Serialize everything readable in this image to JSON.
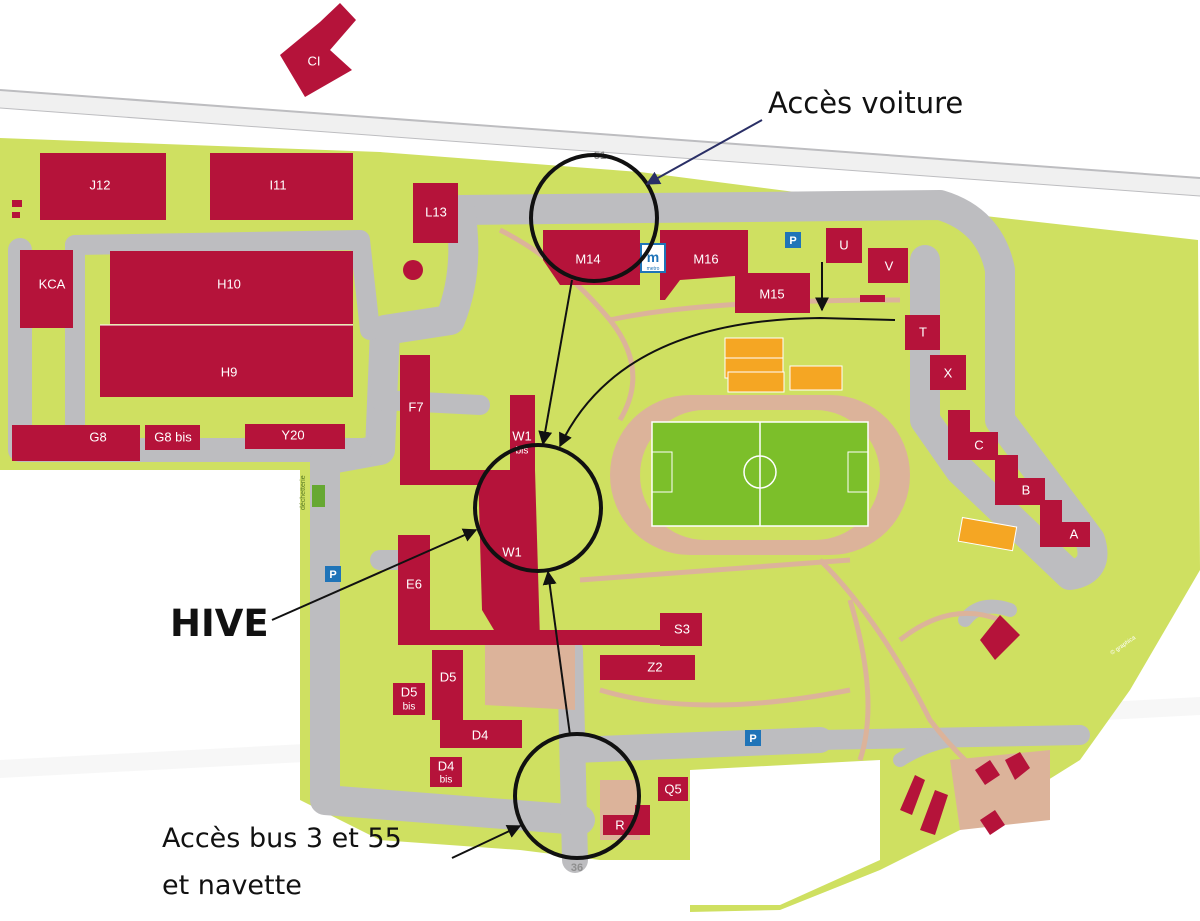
{
  "colors": {
    "building": "#b5133a",
    "lawn": "#cfe061",
    "road": "#bdbdc0",
    "path": "#dcb39a",
    "field": "#7cbf2a",
    "court": "#f5a623",
    "parking": "#1f74b8",
    "annotation": "#111111"
  },
  "roads": {
    "north": "51",
    "south": "36"
  },
  "buildings": {
    "ci": "CI",
    "j12": "J12",
    "i11": "I11",
    "l13": "L13",
    "kca": "KCA",
    "h10": "H10",
    "h9": "H9",
    "g8": "G8",
    "g8bis": "G8 bis",
    "y20": "Y20",
    "f7": "F7",
    "w1bis": "W1",
    "w1bis_sub": "bis",
    "w1": "W1",
    "e6": "E6",
    "m14": "M14",
    "m16": "M16",
    "m15": "M15",
    "u": "U",
    "v": "V",
    "t": "T",
    "x": "X",
    "c": "C",
    "b": "B",
    "a": "A",
    "s3": "S3",
    "z2": "Z2",
    "d5": "D5",
    "d5bis": "D5",
    "d5bis_sub": "bis",
    "d4": "D4",
    "d4bis": "D4",
    "d4bis_sub": "bis",
    "q5": "Q5",
    "r": "R"
  },
  "small_labels": {
    "decheterie": "déchetterie",
    "metro_logo": "m",
    "metro_text": "metro",
    "credit": "© graphica"
  },
  "parking_label": "P",
  "annotations": {
    "car_access": "Accès voiture",
    "hive": "HIVE",
    "bus_access_line1": "Accès bus 3 et 55",
    "bus_access_line2": "et navette"
  }
}
